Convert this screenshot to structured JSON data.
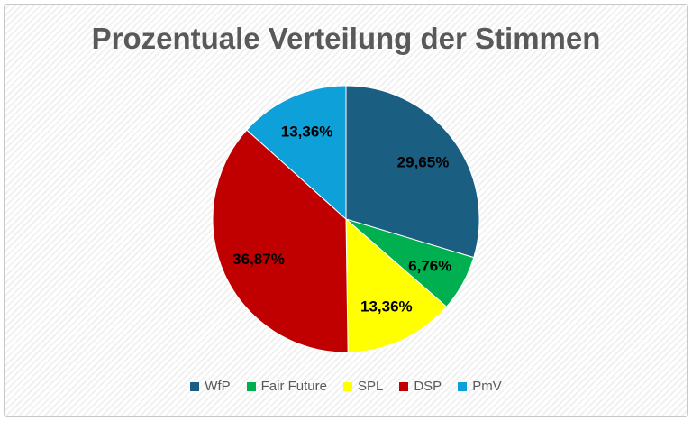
{
  "chart_data": {
    "type": "pie",
    "title": "Prozentuale Verteilung der Stimmen",
    "legend_position": "bottom",
    "start_angle": "top, clockwise",
    "slices": [
      {
        "name": "WfP",
        "value": 29.65,
        "label": "29,65%",
        "color": "#1a5e82"
      },
      {
        "name": "Fair Future",
        "value": 6.76,
        "label": "6,76%",
        "color": "#00b050"
      },
      {
        "name": "SPL",
        "value": 13.36,
        "label": "13,36%",
        "color": "#ffff00"
      },
      {
        "name": "DSP",
        "value": 36.87,
        "label": "36,87%",
        "color": "#c00000"
      },
      {
        "name": "PmV",
        "value": 13.36,
        "label": "13,36%",
        "color": "#0ea0d8"
      }
    ]
  }
}
